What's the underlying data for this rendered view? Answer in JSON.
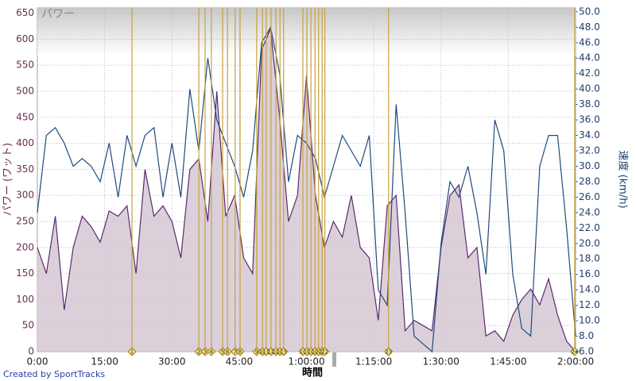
{
  "chart_data": {
    "type": "line",
    "title": "パワー",
    "x_label": "時間",
    "y_label": "パワー (ワット)",
    "y2_label": "速度 (km/h)",
    "footer": "Created by SportTracks",
    "x": [
      0,
      2,
      4,
      6,
      8,
      10,
      12,
      14,
      16,
      18,
      20,
      22,
      24,
      26,
      28,
      30,
      32,
      34,
      36,
      38,
      40,
      42,
      44,
      46,
      48,
      50,
      52,
      54,
      56,
      58,
      60,
      62,
      64,
      66,
      68,
      70,
      72,
      74,
      76,
      78,
      80,
      82,
      84,
      86,
      88,
      90,
      92,
      94,
      96,
      98,
      100,
      102,
      104,
      106,
      108,
      110,
      112,
      114,
      116,
      118,
      120
    ],
    "series": [
      {
        "name": "パワー",
        "color": "#5b2a6b",
        "fill": "#d5c8d3",
        "axis": "y",
        "values": [
          200,
          150,
          260,
          80,
          200,
          260,
          240,
          210,
          270,
          260,
          280,
          150,
          350,
          260,
          280,
          250,
          180,
          350,
          370,
          250,
          500,
          260,
          300,
          180,
          150,
          580,
          620,
          450,
          250,
          300,
          530,
          300,
          200,
          250,
          220,
          300,
          200,
          180,
          60,
          280,
          300,
          40,
          60,
          50,
          40,
          200,
          300,
          320,
          180,
          200,
          30,
          40,
          20,
          70,
          100,
          120,
          90,
          140,
          70,
          20,
          0
        ]
      },
      {
        "name": "速度",
        "color": "#1f4a7a",
        "axis": "y2",
        "values": [
          24,
          34,
          35,
          33,
          30,
          31,
          30,
          28,
          33,
          26,
          34,
          30,
          34,
          35,
          26,
          33,
          26,
          40,
          32,
          44,
          36,
          33,
          30,
          26,
          32,
          46,
          48,
          42,
          28,
          34,
          33,
          31,
          26,
          30,
          34,
          32,
          30,
          34,
          14,
          12,
          38,
          24,
          8,
          7,
          6,
          20,
          28,
          26,
          30,
          24,
          16,
          36,
          32,
          16,
          9,
          8,
          30,
          34,
          34,
          22,
          8
        ]
      }
    ],
    "xlim": [
      0,
      120
    ],
    "xticks": [
      {
        "value": 0,
        "label": "0:00"
      },
      {
        "value": 15,
        "label": "15:00"
      },
      {
        "value": 30,
        "label": "30:00"
      },
      {
        "value": 45,
        "label": "45:00"
      },
      {
        "value": 60,
        "label": "1:00:00"
      },
      {
        "value": 75,
        "label": "1:15:00"
      },
      {
        "value": 90,
        "label": "1:30:00"
      },
      {
        "value": 105,
        "label": "1:45:00"
      },
      {
        "value": 120,
        "label": "2:00:00"
      }
    ],
    "ylim": [
      0,
      660
    ],
    "yticks": [
      0,
      50,
      100,
      150,
      200,
      250,
      300,
      350,
      400,
      450,
      500,
      550,
      600,
      650
    ],
    "y2lim": [
      6,
      50.5
    ],
    "y2ticks": [
      {
        "value": 6,
        "label": "6.0"
      },
      {
        "value": 8,
        "label": "8.0"
      },
      {
        "value": 10,
        "label": "10.0"
      },
      {
        "value": 12,
        "label": "12.0"
      },
      {
        "value": 14,
        "label": "14.0"
      },
      {
        "value": 16,
        "label": "16.0"
      },
      {
        "value": 18,
        "label": "18.0"
      },
      {
        "value": 20,
        "label": "20.0"
      },
      {
        "value": 22,
        "label": "22.0"
      },
      {
        "value": 24,
        "label": "24.0"
      },
      {
        "value": 26,
        "label": "26.0"
      },
      {
        "value": 28,
        "label": "28.0"
      },
      {
        "value": 30,
        "label": "30.0"
      },
      {
        "value": 32,
        "label": "32.0"
      },
      {
        "value": 34,
        "label": "34.0"
      },
      {
        "value": 36,
        "label": "36.0"
      },
      {
        "value": 38,
        "label": "38.0"
      },
      {
        "value": 40,
        "label": "40.0"
      },
      {
        "value": 42,
        "label": "42.0"
      },
      {
        "value": 44,
        "label": "44.0"
      },
      {
        "value": 46,
        "label": "46.0"
      },
      {
        "value": 48,
        "label": "48.0"
      },
      {
        "value": 50,
        "label": "50.0"
      }
    ],
    "grid": true,
    "lap_color": "#c9a23a",
    "laps": [
      {
        "label": "1",
        "x": 21.1
      },
      {
        "label": "2",
        "x": 36.0
      },
      {
        "label": "3",
        "x": 37.4
      },
      {
        "label": "4",
        "x": 38.8
      },
      {
        "label": "5",
        "x": 41.3
      },
      {
        "label": "6",
        "x": 42.4
      },
      {
        "label": "7",
        "x": 44.1
      },
      {
        "label": "8",
        "x": 45.2
      },
      {
        "label": "9",
        "x": 48.9
      },
      {
        "label": "10",
        "x": 50.2
      },
      {
        "label": "11",
        "x": 51.0
      },
      {
        "label": "12",
        "x": 52.1
      },
      {
        "label": "13",
        "x": 53.2
      },
      {
        "label": "14",
        "x": 54.1
      },
      {
        "label": "15",
        "x": 54.9
      },
      {
        "label": "16",
        "x": 59.2
      },
      {
        "label": "17",
        "x": 60.1
      },
      {
        "label": "18",
        "x": 61.0
      },
      {
        "label": "19",
        "x": 61.9
      },
      {
        "label": "20",
        "x": 62.7
      },
      {
        "label": "21",
        "x": 63.5
      },
      {
        "label": "22",
        "x": 64.1
      },
      {
        "label": "23",
        "x": 78.3
      },
      {
        "label": "24",
        "x": 119.8
      }
    ]
  }
}
